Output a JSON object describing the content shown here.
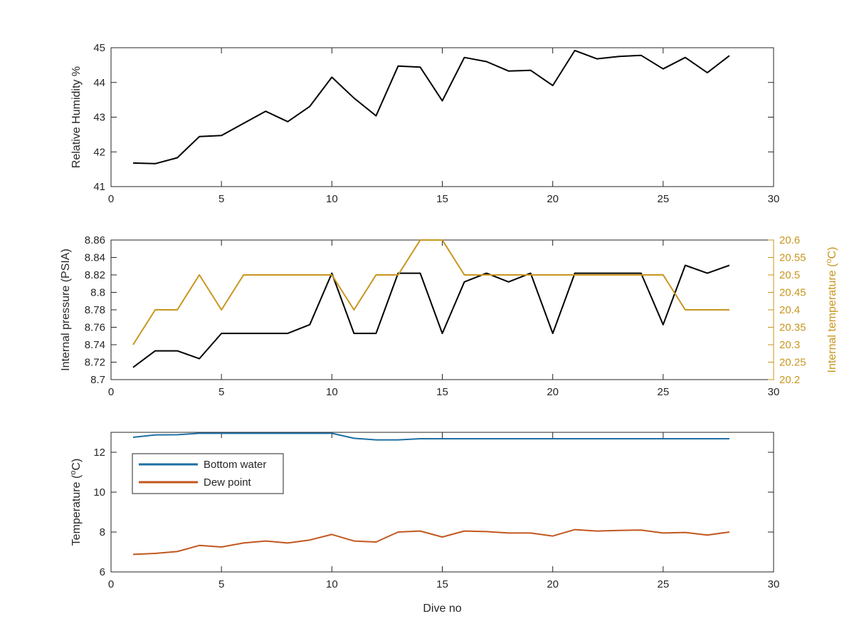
{
  "chart_data": [
    {
      "type": "line",
      "ylabel": "Relative Humidity %",
      "xlim": [
        0,
        30
      ],
      "ylim": [
        41,
        45
      ],
      "xticks": [
        "0",
        "5",
        "10",
        "15",
        "20",
        "25",
        "30"
      ],
      "yticks": [
        "41",
        "42",
        "43",
        "44",
        "45"
      ],
      "grid": false,
      "x": [
        1,
        2,
        3,
        4,
        5,
        6,
        7,
        8,
        9,
        10,
        11,
        12,
        13,
        14,
        15,
        16,
        17,
        18,
        19,
        20,
        21,
        22,
        23,
        24,
        25,
        26,
        27,
        28
      ],
      "series": [
        {
          "color": "#000000",
          "values": [
            41.68,
            41.66,
            41.83,
            42.44,
            42.47,
            42.82,
            43.17,
            42.87,
            43.31,
            44.15,
            43.55,
            43.04,
            44.47,
            44.44,
            43.47,
            44.72,
            44.6,
            44.33,
            44.35,
            43.91,
            44.92,
            44.68,
            44.75,
            44.78,
            44.39,
            44.72,
            44.28,
            44.77
          ]
        }
      ]
    },
    {
      "type": "line",
      "ylabel": "Internal pressure (PSIA)",
      "y2label": "Internal temperature (°C)",
      "xlim": [
        0,
        30
      ],
      "ylim": [
        8.7,
        8.86
      ],
      "y2lim": [
        20.2,
        20.6
      ],
      "xticks": [
        "0",
        "5",
        "10",
        "15",
        "20",
        "25",
        "30"
      ],
      "yticks": [
        "8.7",
        "8.72",
        "8.74",
        "8.76",
        "8.78",
        "8.8",
        "8.82",
        "8.84",
        "8.86"
      ],
      "y2ticks": [
        "20.2",
        "20.25",
        "20.3",
        "20.35",
        "20.4",
        "20.45",
        "20.5",
        "20.55",
        "20.6"
      ],
      "grid": false,
      "x": [
        1,
        2,
        3,
        4,
        5,
        6,
        7,
        8,
        9,
        10,
        11,
        12,
        13,
        14,
        15,
        16,
        17,
        18,
        19,
        20,
        21,
        22,
        23,
        24,
        25,
        26,
        27,
        28
      ],
      "series": [
        {
          "axis": "left",
          "color": "#000000",
          "values": [
            8.714,
            8.733,
            8.733,
            8.724,
            8.753,
            8.753,
            8.753,
            8.753,
            8.763,
            8.822,
            8.753,
            8.753,
            8.822,
            8.822,
            8.753,
            8.812,
            8.822,
            8.812,
            8.822,
            8.753,
            8.822,
            8.822,
            8.822,
            8.822,
            8.763,
            8.831,
            8.822,
            8.831
          ]
        },
        {
          "axis": "right",
          "color": "#c8961e",
          "values": [
            20.3,
            20.4,
            20.4,
            20.5,
            20.4,
            20.5,
            20.5,
            20.5,
            20.5,
            20.5,
            20.4,
            20.5,
            20.5,
            20.6,
            20.6,
            20.5,
            20.5,
            20.5,
            20.5,
            20.5,
            20.5,
            20.5,
            20.5,
            20.5,
            20.5,
            20.4,
            20.4,
            20.4
          ]
        }
      ]
    },
    {
      "type": "line",
      "xlabel": "Dive no",
      "ylabel": "Temperature (°C)",
      "xlim": [
        0,
        30
      ],
      "ylim": [
        6,
        13
      ],
      "xticks": [
        "0",
        "5",
        "10",
        "15",
        "20",
        "25",
        "30"
      ],
      "yticks": [
        "6",
        "8",
        "10",
        "12"
      ],
      "grid": false,
      "legend": "top-left",
      "x": [
        1,
        2,
        3,
        4,
        5,
        6,
        7,
        8,
        9,
        10,
        11,
        12,
        13,
        14,
        15,
        16,
        17,
        18,
        19,
        20,
        21,
        22,
        23,
        24,
        25,
        26,
        27,
        28
      ],
      "series": [
        {
          "name": "Bottom water",
          "color": "#1f6fa3",
          "values": [
            12.75,
            12.87,
            12.88,
            12.95,
            12.95,
            12.95,
            12.95,
            12.95,
            12.95,
            12.95,
            12.7,
            12.62,
            12.62,
            12.68,
            12.68,
            12.68,
            12.68,
            12.68,
            12.68,
            12.68,
            12.68,
            12.68,
            12.68,
            12.68,
            12.68,
            12.68,
            12.68,
            12.68
          ]
        },
        {
          "name": "Dew point",
          "color": "#c2571f",
          "values": [
            6.88,
            6.93,
            7.02,
            7.33,
            7.25,
            7.45,
            7.55,
            7.45,
            7.6,
            7.88,
            7.55,
            7.5,
            8.0,
            8.05,
            7.75,
            8.05,
            8.02,
            7.95,
            7.95,
            7.8,
            8.12,
            8.05,
            8.08,
            8.1,
            7.95,
            7.98,
            7.85,
            8.0
          ]
        }
      ]
    }
  ]
}
